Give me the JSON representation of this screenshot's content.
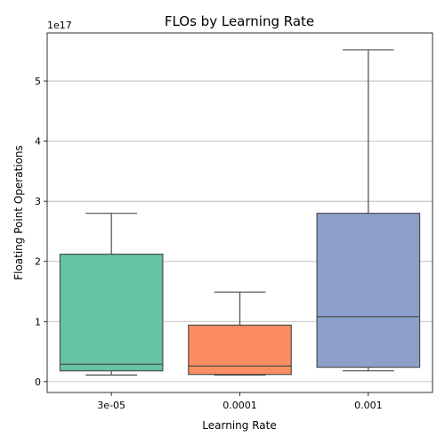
{
  "chart_data": {
    "type": "box",
    "title": "FLOs by Learning Rate",
    "xlabel": "Learning Rate",
    "ylabel": "Floating Point Operations",
    "y_offset_label": "1e17",
    "ylim": [
      -0.18,
      5.8
    ],
    "y_unit_multiplier": 1e+17,
    "y_ticks": [
      0,
      1,
      2,
      3,
      4,
      5
    ],
    "grid": "y",
    "categories": [
      "3e-05",
      "0.0001",
      "0.001"
    ],
    "boxes": [
      {
        "category": "3e-05",
        "whisker_low": 0.11,
        "q1": 0.18,
        "median": 0.29,
        "q3": 2.12,
        "whisker_high": 2.8,
        "color": "#66c2a5"
      },
      {
        "category": "0.0001",
        "whisker_low": 0.11,
        "q1": 0.12,
        "median": 0.26,
        "q3": 0.94,
        "whisker_high": 1.49,
        "color": "#fc8d62"
      },
      {
        "category": "0.001",
        "whisker_low": 0.18,
        "q1": 0.24,
        "median": 1.08,
        "q3": 2.8,
        "whisker_high": 5.52,
        "color": "#8da0cb"
      }
    ]
  }
}
